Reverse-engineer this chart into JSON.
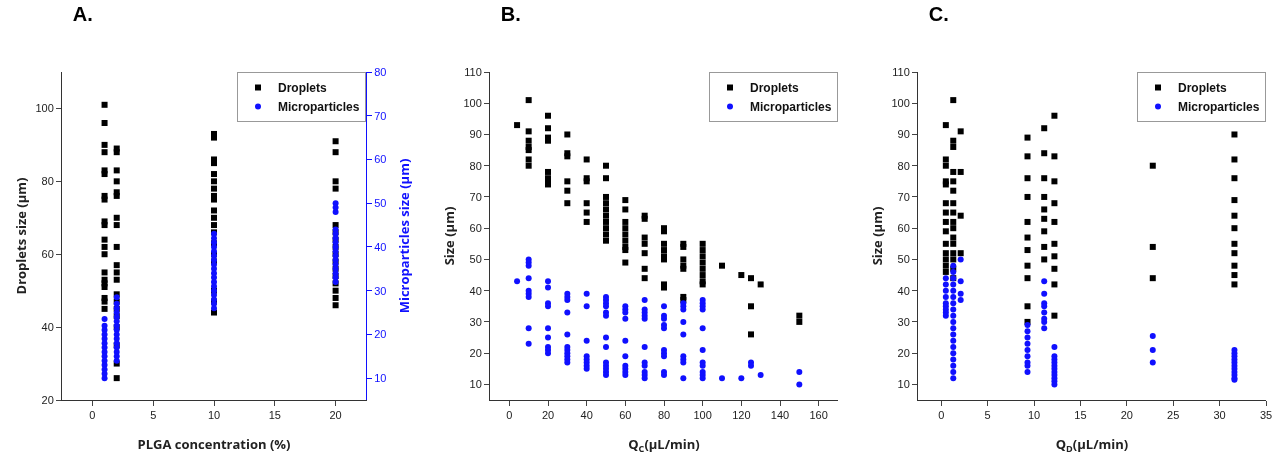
{
  "chart_data": [
    {
      "type": "scatter",
      "title": "A.",
      "xlabel": "PLGA concentration (%)",
      "ylabel": "Droplets size (μm)",
      "y2label": "Microparticles size (μm)",
      "xlim": [
        -2.5,
        22.5
      ],
      "xticks": [
        0,
        5,
        10,
        15,
        20
      ],
      "ylim": [
        20,
        110
      ],
      "yticks": [
        20,
        40,
        60,
        80,
        100
      ],
      "y2lim": [
        5,
        80
      ],
      "y2ticks": [
        10,
        20,
        30,
        40,
        50,
        60,
        70,
        80
      ],
      "grid": false,
      "legend": "top right",
      "series": [
        {
          "name": "Droplets",
          "color": "#000000",
          "marker": "square",
          "x": [
            1,
            1,
            1,
            1,
            1,
            1,
            1,
            1,
            1,
            1,
            1,
            1,
            1,
            1,
            1,
            1,
            1,
            1,
            1,
            1,
            2,
            2,
            2,
            2,
            2,
            2,
            2,
            2,
            2,
            2,
            2,
            2,
            2,
            2,
            2,
            2,
            2,
            2,
            2,
            2,
            10,
            10,
            10,
            10,
            10,
            10,
            10,
            10,
            10,
            10,
            10,
            10,
            10,
            10,
            10,
            10,
            10,
            10,
            10,
            20,
            20,
            20,
            20,
            20,
            20,
            20,
            20,
            20,
            20,
            20,
            20,
            20,
            20,
            20,
            20
          ],
          "values": [
            101,
            96,
            90,
            88,
            83,
            82,
            76,
            75,
            69,
            68,
            64,
            62,
            60,
            55,
            53,
            52,
            51,
            48,
            47,
            45,
            89,
            88,
            83,
            80,
            77,
            76,
            70,
            68,
            62,
            57,
            55,
            53,
            49,
            47,
            45,
            43,
            40,
            35,
            30,
            26,
            93,
            92,
            86,
            85,
            82,
            80,
            78,
            76,
            75,
            72,
            70,
            68,
            66,
            63,
            60,
            58,
            50,
            47,
            44,
            91,
            88,
            80,
            78,
            68,
            66,
            64,
            62,
            60,
            58,
            56,
            54,
            52,
            50,
            48,
            46
          ]
        },
        {
          "name": "Microparticles",
          "color": "#1010ff",
          "marker": "circle",
          "axis": "y2",
          "x": [
            1,
            1,
            1,
            1,
            1,
            1,
            1,
            1,
            1,
            1,
            1,
            1,
            1,
            1,
            2,
            2,
            2,
            2,
            2,
            2,
            2,
            2,
            2,
            2,
            2,
            2,
            2,
            2,
            2,
            10,
            10,
            10,
            10,
            10,
            10,
            10,
            10,
            10,
            10,
            10,
            10,
            10,
            10,
            10,
            10,
            10,
            10,
            20,
            20,
            20,
            20,
            20,
            20,
            20,
            20,
            20,
            20,
            20,
            20,
            20,
            20,
            20,
            20
          ],
          "values": [
            23.5,
            22,
            21,
            20,
            19,
            18,
            17,
            16,
            15,
            14,
            13,
            12,
            11,
            10,
            28.5,
            27,
            26,
            25,
            24,
            23,
            22,
            21,
            20,
            19,
            18,
            17,
            16,
            15,
            14,
            43,
            42,
            41,
            40,
            39,
            38,
            37,
            36,
            35,
            34,
            33,
            32,
            31,
            30,
            29,
            28,
            27,
            26,
            50,
            49,
            48,
            44,
            43,
            42,
            41,
            40,
            39,
            38,
            37,
            36,
            35,
            34,
            33,
            32
          ]
        }
      ]
    },
    {
      "type": "scatter",
      "title": "B.",
      "xlabel": "Q$_{C}$(μL/min)",
      "ylabel": "Size (μm)",
      "xlim": [
        -10,
        170
      ],
      "xticks": [
        0,
        20,
        40,
        60,
        80,
        100,
        120,
        140,
        160
      ],
      "ylim": [
        5,
        110
      ],
      "yticks": [
        10,
        20,
        30,
        40,
        50,
        60,
        70,
        80,
        90,
        100,
        110
      ],
      "grid": false,
      "legend": "top right",
      "series": [
        {
          "name": "Droplets",
          "color": "#000000",
          "marker": "square",
          "x": [
            4,
            10,
            10,
            10,
            10,
            10,
            10,
            10,
            20,
            20,
            20,
            20,
            20,
            20,
            20,
            20,
            30,
            30,
            30,
            30,
            30,
            30,
            40,
            40,
            40,
            40,
            40,
            40,
            50,
            50,
            50,
            50,
            50,
            50,
            50,
            50,
            50,
            50,
            60,
            60,
            60,
            60,
            60,
            60,
            60,
            60,
            60,
            70,
            70,
            70,
            70,
            70,
            70,
            70,
            80,
            80,
            80,
            80,
            80,
            80,
            80,
            80,
            90,
            90,
            90,
            90,
            90,
            90,
            90,
            100,
            100,
            100,
            100,
            100,
            100,
            100,
            100,
            110,
            120,
            125,
            125,
            125,
            130,
            150,
            150
          ],
          "values": [
            93,
            101,
            91,
            88,
            86,
            85,
            82,
            80,
            96,
            92,
            89,
            88,
            78,
            76,
            75,
            74,
            90,
            84,
            83,
            75,
            72,
            68,
            82,
            76,
            75,
            68,
            65,
            62,
            80,
            76,
            70,
            68,
            66,
            64,
            62,
            60,
            58,
            56,
            69,
            66,
            62,
            60,
            58,
            56,
            54,
            53,
            49,
            64,
            63,
            57,
            55,
            52,
            47,
            44,
            60,
            59,
            55,
            53,
            51,
            50,
            42,
            41,
            55,
            54,
            50,
            48,
            47,
            38,
            37,
            55,
            53,
            51,
            49,
            47,
            45,
            43,
            42,
            48,
            45,
            44,
            35,
            26,
            42,
            32,
            30
          ]
        },
        {
          "name": "Microparticles",
          "color": "#1010ff",
          "marker": "circle",
          "x": [
            4,
            10,
            10,
            10,
            10,
            10,
            10,
            10,
            10,
            10,
            20,
            20,
            20,
            20,
            20,
            20,
            20,
            20,
            20,
            30,
            30,
            30,
            30,
            30,
            30,
            30,
            30,
            30,
            30,
            30,
            40,
            40,
            40,
            40,
            40,
            40,
            40,
            40,
            50,
            50,
            50,
            50,
            50,
            50,
            50,
            50,
            50,
            50,
            50,
            50,
            50,
            60,
            60,
            60,
            60,
            60,
            60,
            60,
            60,
            60,
            60,
            70,
            70,
            70,
            70,
            70,
            70,
            70,
            70,
            70,
            70,
            70,
            80,
            80,
            80,
            80,
            80,
            80,
            80,
            80,
            80,
            80,
            90,
            90,
            90,
            90,
            90,
            90,
            90,
            90,
            90,
            100,
            100,
            100,
            100,
            100,
            100,
            100,
            100,
            100,
            100,
            100,
            110,
            120,
            125,
            125,
            130,
            150,
            150
          ],
          "values": [
            43,
            50,
            49,
            48,
            44,
            40,
            39,
            38,
            28,
            23,
            43,
            41,
            36,
            35,
            28,
            25,
            22,
            21,
            20,
            39,
            38,
            37,
            33,
            26,
            22,
            21,
            20,
            19,
            18,
            17,
            39,
            35,
            24,
            19,
            18,
            17,
            16,
            15,
            38,
            37,
            36,
            35,
            33,
            32,
            25,
            22,
            17,
            16,
            15,
            14,
            13,
            35,
            34,
            33,
            31,
            24,
            19,
            16,
            15,
            14,
            13,
            37,
            34,
            33,
            32,
            31,
            22,
            17,
            16,
            14,
            13,
            12,
            35,
            32,
            31,
            29,
            28,
            21,
            20,
            19,
            14,
            13,
            36,
            35,
            34,
            30,
            26,
            19,
            18,
            17,
            12,
            37,
            36,
            35,
            34,
            28,
            21,
            17,
            16,
            14,
            13,
            12,
            12,
            12,
            17,
            16,
            13,
            14,
            10
          ]
        }
      ]
    },
    {
      "type": "scatter",
      "title": "C.",
      "xlabel": "Q$_{D}$(μL/min)",
      "ylabel": "Size (μm)",
      "xlim": [
        -2.5,
        35
      ],
      "xticks": [
        0,
        5,
        10,
        15,
        20,
        25,
        30,
        35
      ],
      "ylim": [
        5,
        110
      ],
      "yticks": [
        10,
        20,
        30,
        40,
        50,
        60,
        70,
        80,
        90,
        100,
        110
      ],
      "grid": false,
      "legend": "top right",
      "series": [
        {
          "name": "Droplets",
          "color": "#000000",
          "marker": "square",
          "x": [
            0.5,
            0.5,
            0.5,
            0.5,
            0.5,
            0.5,
            0.5,
            0.5,
            0.5,
            0.5,
            0.5,
            0.5,
            0.5,
            0.5,
            1.3,
            1.3,
            1.3,
            1.3,
            1.3,
            1.3,
            1.3,
            1.3,
            1.3,
            1.3,
            1.3,
            1.3,
            1.3,
            1.3,
            1.3,
            1.3,
            2.1,
            2.1,
            2.1,
            2.1,
            9.3,
            9.3,
            9.3,
            9.3,
            9.3,
            9.3,
            9.3,
            9.3,
            9.3,
            9.3,
            9.3,
            11.1,
            11.1,
            11.1,
            11.1,
            11.1,
            11.1,
            11.1,
            11.1,
            11.1,
            12.2,
            12.2,
            12.2,
            12.2,
            12.2,
            12.2,
            12.2,
            12.2,
            12.2,
            12.2,
            22.8,
            22.8,
            22.8,
            31.6,
            31.6,
            31.6,
            31.6,
            31.6,
            31.6,
            31.6,
            31.6,
            31.6,
            31.6,
            31.6
          ],
          "values": [
            93,
            82,
            80,
            75,
            74,
            68,
            65,
            62,
            59,
            55,
            52,
            50,
            48,
            46,
            101,
            88,
            86,
            78,
            75,
            72,
            68,
            65,
            62,
            60,
            57,
            55,
            52,
            50,
            47,
            44,
            91,
            78,
            64,
            52,
            89,
            83,
            76,
            70,
            62,
            57,
            53,
            48,
            44,
            35,
            30,
            92,
            84,
            76,
            70,
            66,
            63,
            59,
            54,
            50,
            96,
            83,
            75,
            68,
            62,
            55,
            51,
            47,
            42,
            32,
            80,
            54,
            44,
            90,
            82,
            76,
            69,
            64,
            60,
            55,
            52,
            48,
            45,
            42
          ]
        },
        {
          "name": "Microparticles",
          "color": "#1010ff",
          "marker": "circle",
          "x": [
            0.5,
            0.5,
            0.5,
            0.5,
            0.5,
            0.5,
            0.5,
            0.5,
            0.5,
            1.3,
            1.3,
            1.3,
            1.3,
            1.3,
            1.3,
            1.3,
            1.3,
            1.3,
            1.3,
            1.3,
            1.3,
            1.3,
            1.3,
            1.3,
            1.3,
            1.3,
            1.3,
            1.3,
            2.1,
            2.1,
            2.1,
            2.1,
            9.3,
            9.3,
            9.3,
            9.3,
            9.3,
            9.3,
            9.3,
            9.3,
            9.3,
            11.1,
            11.1,
            11.1,
            11.1,
            11.1,
            11.1,
            11.1,
            11.1,
            12.2,
            12.2,
            12.2,
            12.2,
            12.2,
            12.2,
            12.2,
            12.2,
            12.2,
            12.2,
            12.2,
            22.8,
            22.8,
            22.8,
            31.6,
            31.6,
            31.6,
            31.6,
            31.6,
            31.6,
            31.6,
            31.6,
            31.6,
            31.6,
            31.6
          ],
          "values": [
            44,
            42,
            40,
            38,
            36,
            35,
            34,
            33,
            32,
            48,
            46,
            44,
            42,
            40,
            38,
            36,
            34,
            32,
            30,
            28,
            26,
            24,
            22,
            20,
            18,
            16,
            14,
            12,
            50,
            43,
            39,
            37,
            29,
            27,
            25,
            23,
            21,
            19,
            17,
            16,
            14,
            43,
            39,
            36,
            35,
            33,
            31,
            30,
            28,
            22,
            19,
            18,
            17,
            16,
            15,
            14,
            13,
            12,
            11,
            10,
            25.5,
            21,
            17,
            21,
            20,
            19,
            18,
            17,
            16,
            15,
            14,
            13,
            12,
            11.5
          ]
        }
      ]
    }
  ]
}
